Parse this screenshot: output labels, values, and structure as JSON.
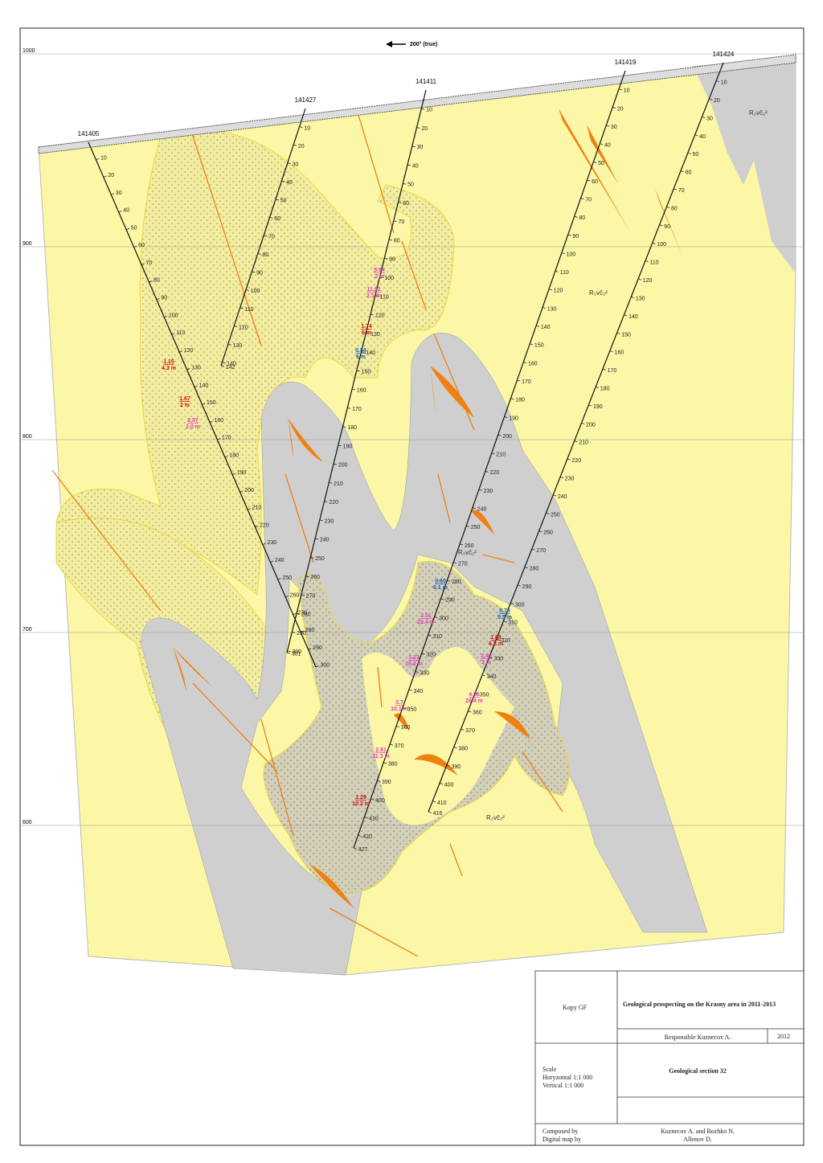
{
  "map": {
    "direction": "200° (true)",
    "elevations": [
      1000,
      900,
      800,
      700,
      600
    ],
    "formation_labels": [
      "R₃vč₂²",
      "R₃vč₂²",
      "R₃vč₂²",
      "R₃vč₂²"
    ],
    "holes": [
      {
        "name": "141405",
        "depths": [
          10,
          20,
          30,
          40,
          50,
          60,
          70,
          80,
          90,
          100,
          110,
          120,
          130,
          140,
          150,
          160,
          170,
          180,
          190,
          200,
          210,
          220,
          230,
          240,
          250,
          260,
          270,
          280,
          290,
          300
        ]
      },
      {
        "name": "141427",
        "depths": [
          10,
          20,
          30,
          40,
          50,
          60,
          70,
          80,
          90,
          100,
          110,
          120,
          130,
          140,
          142
        ]
      },
      {
        "name": "141411",
        "depths": [
          10,
          20,
          30,
          40,
          50,
          60,
          70,
          80,
          90,
          100,
          110,
          120,
          130,
          140,
          150,
          160,
          170,
          180,
          190,
          200,
          210,
          220,
          230,
          240,
          250,
          260,
          270,
          280,
          290,
          300,
          301
        ]
      },
      {
        "name": "141419",
        "depths": [
          10,
          20,
          30,
          40,
          50,
          60,
          70,
          80,
          90,
          100,
          110,
          120,
          130,
          140,
          150,
          160,
          170,
          180,
          190,
          200,
          210,
          220,
          230,
          240,
          250,
          260,
          270,
          280,
          290,
          300,
          310,
          320,
          330,
          340,
          350,
          360,
          370,
          380,
          390,
          400,
          410,
          420,
          427
        ]
      },
      {
        "name": "141424",
        "depths": [
          10,
          20,
          30,
          40,
          50,
          60,
          70,
          80,
          90,
          100,
          110,
          120,
          130,
          140,
          150,
          160,
          170,
          180,
          190,
          200,
          210,
          220,
          230,
          240,
          250,
          260,
          270,
          280,
          290,
          300,
          310,
          320,
          330,
          340,
          350,
          360,
          370,
          380,
          390,
          400,
          410,
          416
        ]
      }
    ],
    "assays": [
      {
        "grade": "1.15",
        "length": "4.3 m",
        "color": "#d01010"
      },
      {
        "grade": "1.67",
        "length": "2 m",
        "color": "#d01010"
      },
      {
        "grade": "2.07",
        "length": "2.0 m",
        "color": "#e040c0"
      },
      {
        "grade": "5.94",
        "length": "2 m",
        "color": "#e040c0"
      },
      {
        "grade": "11.62",
        "length": "2.1 m",
        "color": "#e040c0"
      },
      {
        "grade": "1.74",
        "length": "6 m",
        "color": "#d01010"
      },
      {
        "grade": "0.84",
        "length": "6 m",
        "color": "#1060c0"
      },
      {
        "grade": "0.60",
        "length": "6.1 m",
        "color": "#1060c0"
      },
      {
        "grade": "2.51",
        "length": "22.4 m",
        "color": "#e040c0"
      },
      {
        "grade": "3.23",
        "length": "19.2 m",
        "color": "#e040c0"
      },
      {
        "grade": "3.7",
        "length": "10.1 m",
        "color": "#e040c0"
      },
      {
        "grade": "2.81",
        "length": "11.3 m",
        "color": "#e040c0"
      },
      {
        "grade": "1.29",
        "length": "10.2 m",
        "color": "#d01010"
      },
      {
        "grade": "0.78",
        "length": "5.5 m",
        "color": "#1060c0"
      },
      {
        "grade": "1.88",
        "length": "6.2 m",
        "color": "#d01010"
      },
      {
        "grade": "2.46",
        "length": "3 m",
        "color": "#e040c0"
      },
      {
        "grade": "4.56",
        "length": "28.4 m",
        "color": "#e040c0"
      }
    ],
    "title_block": {
      "org": "Kopy GF",
      "project": "Geological prospecting on the Krasny area in 2011-2013",
      "responsible": "Responsible Kuznecov A.",
      "year": "2012",
      "scale_title": "Scale",
      "scale_h": "Horyzontal 1:1 000",
      "scale_v": "Vertical 1:1 000",
      "section": "Geological section 32",
      "composed_label": "Composed by",
      "digital_label": "Digital map by",
      "composed": "Kuznecov A. and Bozhko N.",
      "digital": "Allenov D."
    }
  }
}
